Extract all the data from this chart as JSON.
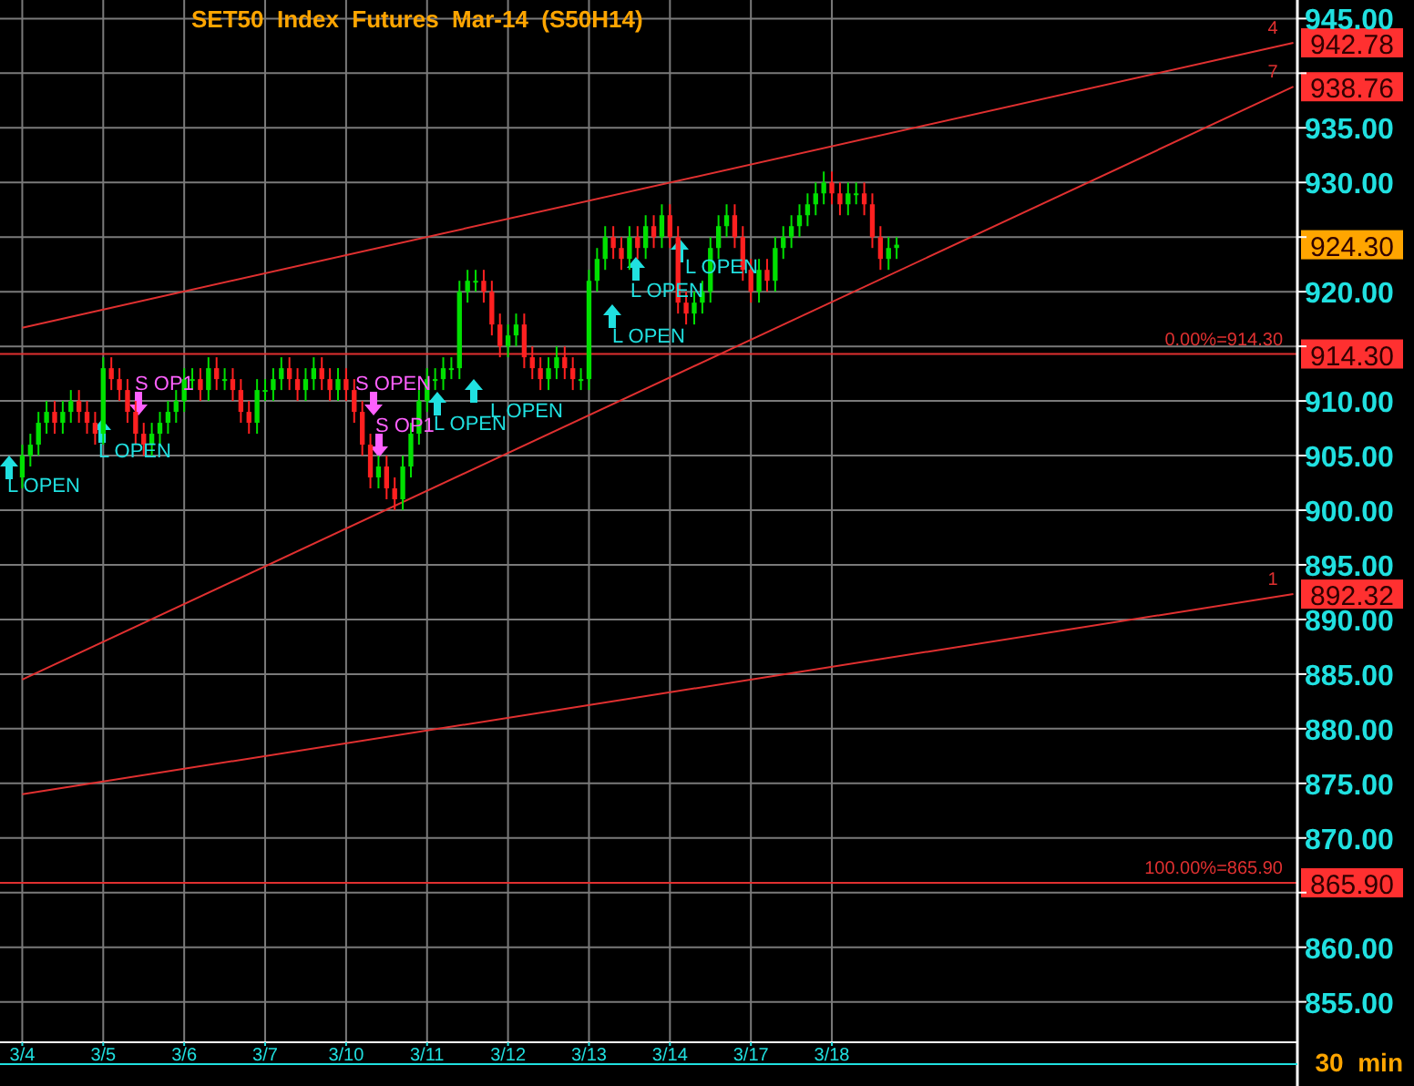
{
  "chart_data": {
    "type": "candlestick",
    "title": "SET50  Index  Futures  Mar-14  (S50H14)",
    "categories": [
      "3/4",
      null,
      null,
      null,
      null,
      null,
      null,
      null,
      null,
      null,
      "3/5",
      null,
      null,
      null,
      null,
      null,
      null,
      null,
      null,
      null,
      "3/6",
      null,
      null,
      null,
      null,
      null,
      null,
      null,
      null,
      null,
      "3/7",
      null,
      null,
      null,
      null,
      null,
      null,
      null,
      null,
      null,
      "3/10",
      null,
      null,
      null,
      null,
      null,
      null,
      null,
      null,
      null,
      "3/11",
      null,
      null,
      null,
      null,
      null,
      null,
      null,
      null,
      null,
      "3/12",
      null,
      null,
      null,
      null,
      null,
      null,
      null,
      null,
      null,
      "3/13",
      null,
      null,
      null,
      null,
      null,
      null,
      null,
      null,
      null,
      "3/14",
      null,
      null,
      null,
      null,
      null,
      null,
      null,
      null,
      null,
      "3/17",
      null,
      null,
      null,
      null,
      null,
      null,
      null,
      null,
      null,
      "3/18",
      null,
      null,
      null,
      null,
      null,
      null,
      null,
      null,
      null,
      null,
      null,
      null,
      null,
      null,
      null,
      null,
      null,
      null,
      null,
      null,
      null,
      null,
      null,
      null,
      null,
      null,
      null,
      null,
      null,
      null,
      null,
      null,
      null,
      null,
      null,
      null,
      null,
      null,
      null,
      null,
      null,
      null,
      null,
      null,
      null,
      null,
      null,
      null,
      null,
      null,
      null,
      null,
      null,
      null,
      null,
      null,
      null
    ],
    "ohlc": [
      [
        903,
        906,
        902,
        905
      ],
      [
        905,
        907,
        904,
        906
      ],
      [
        906,
        909,
        905,
        908
      ],
      [
        908,
        910,
        907,
        909
      ],
      [
        909,
        910,
        907,
        908
      ],
      [
        908,
        910,
        907,
        909
      ],
      [
        909,
        911,
        908,
        910
      ],
      [
        910,
        911,
        908,
        909
      ],
      [
        909,
        910,
        907,
        908
      ],
      [
        908,
        909,
        906,
        907
      ],
      [
        907,
        914,
        906,
        913
      ],
      [
        913,
        914,
        911,
        912
      ],
      [
        912,
        913,
        910,
        911
      ],
      [
        911,
        912,
        908,
        909
      ],
      [
        909,
        910,
        906,
        907
      ],
      [
        907,
        908,
        905,
        906
      ],
      [
        906,
        908,
        905,
        907
      ],
      [
        907,
        909,
        906,
        908
      ],
      [
        908,
        910,
        907,
        909
      ],
      [
        909,
        911,
        908,
        910
      ],
      [
        910,
        913,
        909,
        912
      ],
      [
        912,
        913,
        911,
        912
      ],
      [
        912,
        913,
        910,
        911
      ],
      [
        911,
        914,
        910,
        913
      ],
      [
        913,
        914,
        911,
        912
      ],
      [
        912,
        913,
        911,
        912
      ],
      [
        912,
        913,
        910,
        911
      ],
      [
        911,
        912,
        908,
        909
      ],
      [
        909,
        910,
        907,
        908
      ],
      [
        908,
        912,
        907,
        911
      ],
      [
        911,
        912,
        910,
        911
      ],
      [
        911,
        913,
        910,
        912
      ],
      [
        912,
        914,
        911,
        913
      ],
      [
        913,
        914,
        911,
        912
      ],
      [
        912,
        913,
        910,
        911
      ],
      [
        911,
        913,
        910,
        912
      ],
      [
        912,
        914,
        911,
        913
      ],
      [
        913,
        914,
        911,
        912
      ],
      [
        912,
        913,
        910,
        911
      ],
      [
        911,
        913,
        910,
        912
      ],
      [
        912,
        913,
        910,
        911
      ],
      [
        911,
        912,
        908,
        909
      ],
      [
        909,
        910,
        905,
        906
      ],
      [
        906,
        907,
        902,
        903
      ],
      [
        903,
        905,
        902,
        904
      ],
      [
        904,
        905,
        901,
        902
      ],
      [
        902,
        903,
        900,
        901
      ],
      [
        901,
        905,
        900,
        904
      ],
      [
        904,
        908,
        903,
        907
      ],
      [
        907,
        911,
        906,
        910
      ],
      [
        910,
        913,
        909,
        912
      ],
      [
        912,
        913,
        911,
        912
      ],
      [
        912,
        914,
        911,
        913
      ],
      [
        913,
        914,
        912,
        913
      ],
      [
        913,
        921,
        912,
        920
      ],
      [
        920,
        922,
        919,
        921
      ],
      [
        921,
        922,
        920,
        921
      ],
      [
        921,
        922,
        919,
        920
      ],
      [
        920,
        921,
        916,
        917
      ],
      [
        917,
        918,
        914,
        915
      ],
      [
        915,
        917,
        914,
        916
      ],
      [
        916,
        918,
        915,
        917
      ],
      [
        917,
        918,
        913,
        914
      ],
      [
        914,
        915,
        912,
        913
      ],
      [
        913,
        914,
        911,
        912
      ],
      [
        912,
        914,
        911,
        913
      ],
      [
        913,
        915,
        912,
        914
      ],
      [
        914,
        915,
        912,
        913
      ],
      [
        913,
        914,
        911,
        912
      ],
      [
        912,
        913,
        911,
        912
      ],
      [
        912,
        922,
        911,
        921
      ],
      [
        921,
        924,
        920,
        923
      ],
      [
        923,
        926,
        922,
        925
      ],
      [
        925,
        926,
        923,
        924
      ],
      [
        924,
        925,
        922,
        923
      ],
      [
        923,
        926,
        922,
        925
      ],
      [
        925,
        926,
        923,
        924
      ],
      [
        924,
        927,
        923,
        926
      ],
      [
        926,
        927,
        924,
        925
      ],
      [
        925,
        928,
        924,
        927
      ],
      [
        927,
        928,
        924,
        925
      ],
      [
        925,
        926,
        918,
        919
      ],
      [
        919,
        920,
        917,
        918
      ],
      [
        918,
        920,
        917,
        919
      ],
      [
        919,
        921,
        918,
        920
      ],
      [
        920,
        925,
        919,
        924
      ],
      [
        924,
        927,
        923,
        926
      ],
      [
        926,
        928,
        925,
        927
      ],
      [
        927,
        928,
        924,
        925
      ],
      [
        925,
        926,
        921,
        922
      ],
      [
        922,
        923,
        919,
        920
      ],
      [
        920,
        923,
        919,
        922
      ],
      [
        922,
        923,
        920,
        921
      ],
      [
        921,
        925,
        920,
        924
      ],
      [
        924,
        926,
        923,
        925
      ],
      [
        925,
        927,
        924,
        926
      ],
      [
        926,
        928,
        925,
        927
      ],
      [
        927,
        929,
        926,
        928
      ],
      [
        928,
        930,
        927,
        929
      ],
      [
        929,
        931,
        928,
        930
      ],
      [
        930,
        931,
        928,
        929
      ],
      [
        929,
        930,
        927,
        928
      ],
      [
        928,
        930,
        927,
        929
      ],
      [
        929,
        930,
        928,
        929
      ],
      [
        929,
        930,
        927,
        928
      ],
      [
        928,
        929,
        924,
        925
      ],
      [
        925,
        926,
        922,
        923
      ],
      [
        923,
        925,
        922,
        924
      ],
      [
        924,
        925,
        923,
        924.3
      ],
      null,
      null,
      null,
      null,
      null,
      null,
      null,
      null,
      null,
      null,
      null,
      null,
      null,
      null,
      null,
      null,
      null,
      null,
      null,
      null,
      null,
      null,
      null,
      null,
      null,
      null,
      null,
      null,
      null,
      null,
      null,
      null,
      null,
      null,
      null,
      null,
      null,
      null,
      null,
      null,
      null,
      null,
      null,
      null,
      null,
      null,
      null,
      null,
      null
    ],
    "series": [
      {
        "type": "line",
        "name": "4",
        "color": "#e03030",
        "values": [
          916.7,
          null,
          null,
          null,
          null,
          null,
          null,
          null,
          null,
          null,
          null,
          null,
          null,
          null,
          null,
          null,
          null,
          null,
          null,
          null,
          null,
          null,
          null,
          null,
          null,
          null,
          null,
          null,
          null,
          null,
          null,
          null,
          null,
          null,
          null,
          null,
          null,
          null,
          null,
          null,
          null,
          null,
          null,
          null,
          null,
          null,
          null,
          null,
          null,
          null,
          null,
          null,
          null,
          null,
          null,
          null,
          null,
          null,
          null,
          null,
          null,
          null,
          null,
          null,
          null,
          null,
          null,
          null,
          null,
          null,
          null,
          null,
          null,
          null,
          null,
          null,
          null,
          null,
          null,
          null,
          null,
          null,
          null,
          null,
          null,
          null,
          null,
          null,
          null,
          null,
          null,
          null,
          null,
          null,
          null,
          null,
          null,
          null,
          null,
          null,
          null,
          null,
          null,
          null,
          null,
          null,
          null,
          null,
          null,
          null,
          null,
          null,
          null,
          null,
          null,
          null,
          null,
          null,
          null,
          null,
          null,
          null,
          null,
          null,
          null,
          null,
          null,
          null,
          null,
          null,
          null,
          null,
          null,
          null,
          null,
          null,
          null,
          null,
          null,
          null,
          null,
          null,
          null,
          null,
          null,
          null,
          null,
          null,
          null,
          null,
          null,
          null,
          null,
          null,
          null,
          null,
          null,
          942.78
        ],
        "value_labels": [
          null,
          null,
          null,
          null,
          null,
          null,
          null,
          null,
          null,
          null,
          null,
          null,
          null,
          null,
          null,
          null,
          null,
          null,
          null,
          null,
          null,
          null,
          null,
          null,
          null,
          null,
          null,
          null,
          null,
          null,
          null,
          null,
          null,
          null,
          null,
          null,
          null,
          null,
          null,
          null,
          null,
          null,
          null,
          null,
          null,
          null,
          null,
          null,
          null,
          null,
          null,
          null,
          null,
          null,
          null,
          null,
          null,
          null,
          null,
          null,
          null,
          null,
          null,
          null,
          null,
          null,
          null,
          null,
          null,
          null,
          null,
          null,
          null,
          null,
          null,
          null,
          null,
          null,
          null,
          null,
          null,
          null,
          null,
          null,
          null,
          null,
          null,
          null,
          null,
          null,
          null,
          null,
          null,
          null,
          null,
          null,
          null,
          null,
          null,
          null,
          null,
          null,
          null,
          null,
          null,
          null,
          null,
          null,
          null,
          null,
          null,
          null,
          null,
          null,
          null,
          null,
          null,
          null,
          null,
          null,
          null,
          null,
          null,
          null,
          null,
          null,
          null,
          null,
          null,
          null,
          null,
          null,
          null,
          null,
          null,
          null,
          null,
          null,
          null,
          null,
          null,
          null,
          null,
          null,
          null,
          null,
          null,
          null,
          null,
          null,
          null,
          null,
          null,
          null,
          null,
          null,
          null,
          "942.78"
        ]
      },
      {
        "type": "line",
        "name": "7",
        "color": "#e03030",
        "values": [
          884.5,
          null,
          null,
          null,
          null,
          null,
          null,
          null,
          null,
          null,
          null,
          null,
          null,
          null,
          null,
          null,
          null,
          null,
          null,
          null,
          null,
          null,
          null,
          null,
          null,
          null,
          null,
          null,
          null,
          null,
          null,
          null,
          null,
          null,
          null,
          null,
          null,
          null,
          null,
          null,
          null,
          null,
          null,
          null,
          null,
          null,
          null,
          null,
          null,
          null,
          null,
          null,
          null,
          null,
          null,
          null,
          null,
          null,
          null,
          null,
          null,
          null,
          null,
          null,
          null,
          null,
          null,
          null,
          null,
          null,
          null,
          null,
          null,
          null,
          null,
          null,
          null,
          null,
          null,
          null,
          null,
          null,
          null,
          null,
          null,
          null,
          null,
          null,
          null,
          null,
          null,
          null,
          null,
          null,
          null,
          null,
          null,
          null,
          null,
          null,
          null,
          null,
          null,
          null,
          null,
          null,
          null,
          null,
          null,
          null,
          null,
          null,
          null,
          null,
          null,
          null,
          null,
          null,
          null,
          null,
          null,
          null,
          null,
          null,
          null,
          null,
          null,
          null,
          null,
          null,
          null,
          null,
          null,
          null,
          null,
          null,
          null,
          null,
          null,
          null,
          null,
          null,
          null,
          null,
          null,
          null,
          null,
          null,
          null,
          null,
          null,
          null,
          null,
          null,
          null,
          null,
          null,
          938.76
        ],
        "value_labels": [
          null,
          null,
          null,
          null,
          null,
          null,
          null,
          null,
          null,
          null,
          null,
          null,
          null,
          null,
          null,
          null,
          null,
          null,
          null,
          null,
          null,
          null,
          null,
          null,
          null,
          null,
          null,
          null,
          null,
          null,
          null,
          null,
          null,
          null,
          null,
          null,
          null,
          null,
          null,
          null,
          null,
          null,
          null,
          null,
          null,
          null,
          null,
          null,
          null,
          null,
          null,
          null,
          null,
          null,
          null,
          null,
          null,
          null,
          null,
          null,
          null,
          null,
          null,
          null,
          null,
          null,
          null,
          null,
          null,
          null,
          null,
          null,
          null,
          null,
          null,
          null,
          null,
          null,
          null,
          null,
          null,
          null,
          null,
          null,
          null,
          null,
          null,
          null,
          null,
          null,
          null,
          null,
          null,
          null,
          null,
          null,
          null,
          null,
          null,
          null,
          null,
          null,
          null,
          null,
          null,
          null,
          null,
          null,
          null,
          null,
          null,
          null,
          null,
          null,
          null,
          null,
          null,
          null,
          null,
          null,
          null,
          null,
          null,
          null,
          null,
          null,
          null,
          null,
          null,
          null,
          null,
          null,
          null,
          null,
          null,
          null,
          null,
          null,
          null,
          null,
          null,
          null,
          null,
          null,
          null,
          null,
          null,
          null,
          null,
          null,
          null,
          null,
          null,
          null,
          null,
          null,
          null,
          "938.76"
        ]
      },
      {
        "type": "line",
        "name": "1",
        "color": "#e03030",
        "values": [
          874,
          null,
          null,
          null,
          null,
          null,
          null,
          null,
          null,
          null,
          null,
          null,
          null,
          null,
          null,
          null,
          null,
          null,
          null,
          null,
          null,
          null,
          null,
          null,
          null,
          null,
          null,
          null,
          null,
          null,
          null,
          null,
          null,
          null,
          null,
          null,
          null,
          null,
          null,
          null,
          null,
          null,
          null,
          null,
          null,
          null,
          null,
          null,
          null,
          null,
          null,
          null,
          null,
          null,
          null,
          null,
          null,
          null,
          null,
          null,
          null,
          null,
          null,
          null,
          null,
          null,
          null,
          null,
          null,
          null,
          null,
          null,
          null,
          null,
          null,
          null,
          null,
          null,
          null,
          null,
          null,
          null,
          null,
          null,
          null,
          null,
          null,
          null,
          null,
          null,
          null,
          null,
          null,
          null,
          null,
          null,
          null,
          null,
          null,
          null,
          null,
          null,
          null,
          null,
          null,
          null,
          null,
          null,
          null,
          null,
          null,
          null,
          null,
          null,
          null,
          null,
          null,
          null,
          null,
          null,
          null,
          null,
          null,
          null,
          null,
          null,
          null,
          null,
          null,
          null,
          null,
          null,
          null,
          null,
          null,
          null,
          null,
          null,
          null,
          null,
          null,
          null,
          null,
          null,
          null,
          null,
          null,
          null,
          null,
          null,
          null,
          null,
          null,
          null,
          null,
          null,
          null,
          892.32
        ],
        "value_labels": [
          null,
          null,
          null,
          null,
          null,
          null,
          null,
          null,
          null,
          null,
          null,
          null,
          null,
          null,
          null,
          null,
          null,
          null,
          null,
          null,
          null,
          null,
          null,
          null,
          null,
          null,
          null,
          null,
          null,
          null,
          null,
          null,
          null,
          null,
          null,
          null,
          null,
          null,
          null,
          null,
          null,
          null,
          null,
          null,
          null,
          null,
          null,
          null,
          null,
          null,
          null,
          null,
          null,
          null,
          null,
          null,
          null,
          null,
          null,
          null,
          null,
          null,
          null,
          null,
          null,
          null,
          null,
          null,
          null,
          null,
          null,
          null,
          null,
          null,
          null,
          null,
          null,
          null,
          null,
          null,
          null,
          null,
          null,
          null,
          null,
          null,
          null,
          null,
          null,
          null,
          null,
          null,
          null,
          null,
          null,
          null,
          null,
          null,
          null,
          null,
          null,
          null,
          null,
          null,
          null,
          null,
          null,
          null,
          null,
          null,
          null,
          null,
          null,
          null,
          null,
          null,
          null,
          null,
          null,
          null,
          null,
          null,
          null,
          null,
          null,
          null,
          null,
          null,
          null,
          null,
          null,
          null,
          null,
          null,
          null,
          null,
          null,
          null,
          null,
          null,
          null,
          null,
          null,
          null,
          null,
          null,
          null,
          null,
          null,
          null,
          null,
          null,
          null,
          null,
          null,
          null,
          null,
          "892.32"
        ]
      }
    ],
    "ylim": [
      851.3,
      946.7
    ],
    "yticks": [
      {
        "value": 855,
        "label": "855.00"
      },
      {
        "value": 860,
        "label": "860.00"
      },
      {
        "value": 865,
        "label": null
      },
      {
        "value": 870,
        "label": "870.00"
      },
      {
        "value": 875,
        "label": "875.00"
      },
      {
        "value": 880,
        "label": "880.00"
      },
      {
        "value": 885,
        "label": "885.00"
      },
      {
        "value": 890,
        "label": "890.00"
      },
      {
        "value": 895,
        "label": "895.00"
      },
      {
        "value": 900,
        "label": "900.00"
      },
      {
        "value": 905,
        "label": "905.00"
      },
      {
        "value": 910,
        "label": "910.00"
      },
      {
        "value": 915,
        "label": null
      },
      {
        "value": 920,
        "label": "920.00"
      },
      {
        "value": 925,
        "label": null
      },
      {
        "value": 930,
        "label": "930.00"
      },
      {
        "value": 935,
        "label": "935.00"
      },
      {
        "value": 940,
        "label": null
      },
      {
        "value": 945,
        "label": "945.00"
      }
    ],
    "grid": true,
    "ref_lines": [
      {
        "axis": "y",
        "value": 914.3,
        "label": "0.00%=914.30",
        "color": "#e03030"
      },
      {
        "axis": "y",
        "value": 865.9,
        "label": "100.00%=865.90",
        "color": "#e03030"
      }
    ],
    "annotations": [
      "L OPEN",
      "L OPEN",
      "S OP1",
      "S OPEN",
      "S OP1",
      "L OPEN",
      "L OPEN",
      "L OPEN",
      "L OPEN",
      "L OPEN",
      "924.30",
      "914.30",
      "865.90",
      "30  min"
    ]
  }
}
